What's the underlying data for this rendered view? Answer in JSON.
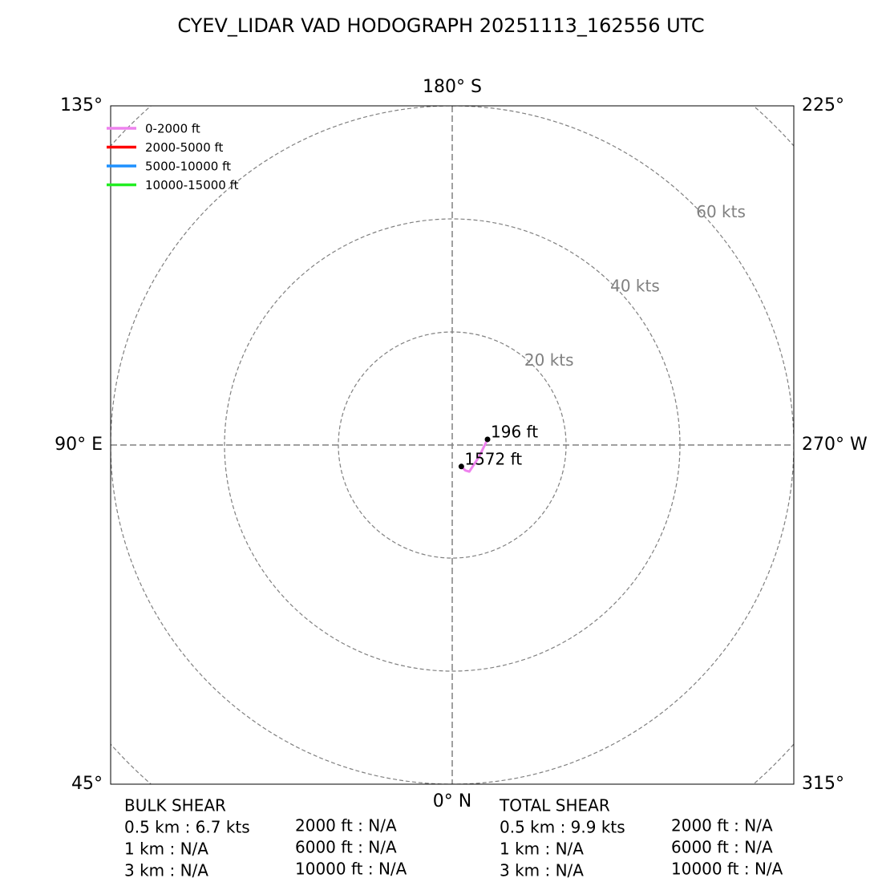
{
  "chart_data": {
    "type": "hodograph",
    "title": "CYEV_LIDAR VAD HODOGRAPH 20251113_162556 UTC",
    "xlim": [
      -60,
      60
    ],
    "ylim": [
      -60,
      60
    ],
    "rticks": [
      {
        "value": 20,
        "label": "20 kts"
      },
      {
        "value": 40,
        "label": "40 kts"
      },
      {
        "value": 60,
        "label": "60 kts"
      },
      {
        "value": 80,
        "label": null
      }
    ],
    "direction_labels": [
      "180° S",
      "90° E",
      "270° W",
      "0° N",
      "135°",
      "225°",
      "45°",
      "315°"
    ],
    "legend": "upper left",
    "series": [
      {
        "name": "0-2000 ft",
        "color": "#ee82ee",
        "x": [
          6.2,
          4.7,
          3.0,
          2.3,
          1.6
        ],
        "values": [
          1.0,
          -2.1,
          -4.7,
          -4.5,
          -3.8
        ]
      },
      {
        "name": "2000-5000 ft",
        "color": "#ff0000",
        "x": [],
        "values": []
      },
      {
        "name": "5000-10000 ft",
        "color": "#1e90ff",
        "x": [],
        "values": []
      },
      {
        "name": "10000-15000 ft",
        "color": "#22ee22",
        "x": [],
        "values": []
      }
    ],
    "annotations": [
      {
        "text": "196 ft",
        "x": 6.2,
        "y": 1.0
      },
      {
        "text": "1572 ft",
        "x": 1.6,
        "y": -3.8
      }
    ]
  },
  "bulk_shear": {
    "title": "BULK SHEAR",
    "km": [
      "0.5 km : 6.7 kts",
      "1 km : N/A",
      "3 km : N/A"
    ],
    "ft": [
      "2000 ft : N/A",
      "6000 ft : N/A",
      "10000 ft : N/A"
    ]
  },
  "total_shear": {
    "title": "TOTAL SHEAR",
    "km": [
      "0.5 km : 9.9 kts",
      "1 km : N/A",
      "3 km : N/A"
    ],
    "ft": [
      "2000 ft : N/A",
      "6000 ft : N/A",
      "10000 ft : N/A"
    ]
  }
}
